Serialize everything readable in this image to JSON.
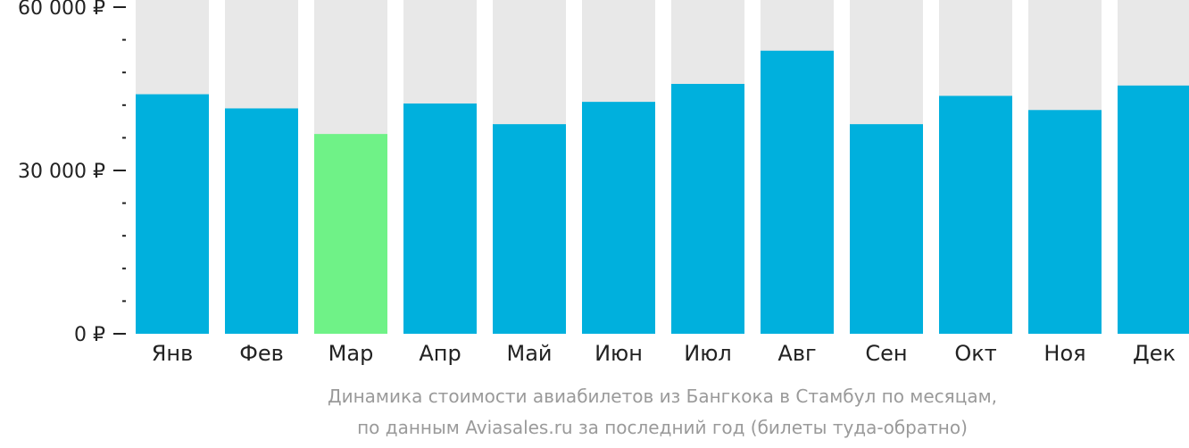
{
  "chart_data": {
    "type": "bar",
    "categories": [
      "Янв",
      "Фев",
      "Мар",
      "Апр",
      "Май",
      "Июн",
      "Июл",
      "Авг",
      "Сен",
      "Окт",
      "Ноя",
      "Дек"
    ],
    "values": [
      44000,
      41400,
      36700,
      42300,
      38500,
      42600,
      45900,
      52000,
      38500,
      43700,
      41100,
      45600
    ],
    "ylim": [
      0,
      60000
    ],
    "yticks": [
      {
        "value": 0,
        "label": "0 ₽"
      },
      {
        "value": 30000,
        "label": "30 000 ₽"
      },
      {
        "value": 60000,
        "label": "60 000 ₽"
      }
    ],
    "minor_tick_step": 6000,
    "highlight_index": 2,
    "colors": {
      "bar": "#00b0dd",
      "highlight": "#6ff287",
      "background_column": "#e8e8e8",
      "axis": "#222222"
    },
    "grid": false,
    "legend": "none"
  },
  "caption": {
    "line1": "Динамика стоимости авиабилетов из Бангкока в Стамбул по месяцам,",
    "line2": "по данным Aviasales.ru за последний год (билеты туда-обратно)"
  }
}
